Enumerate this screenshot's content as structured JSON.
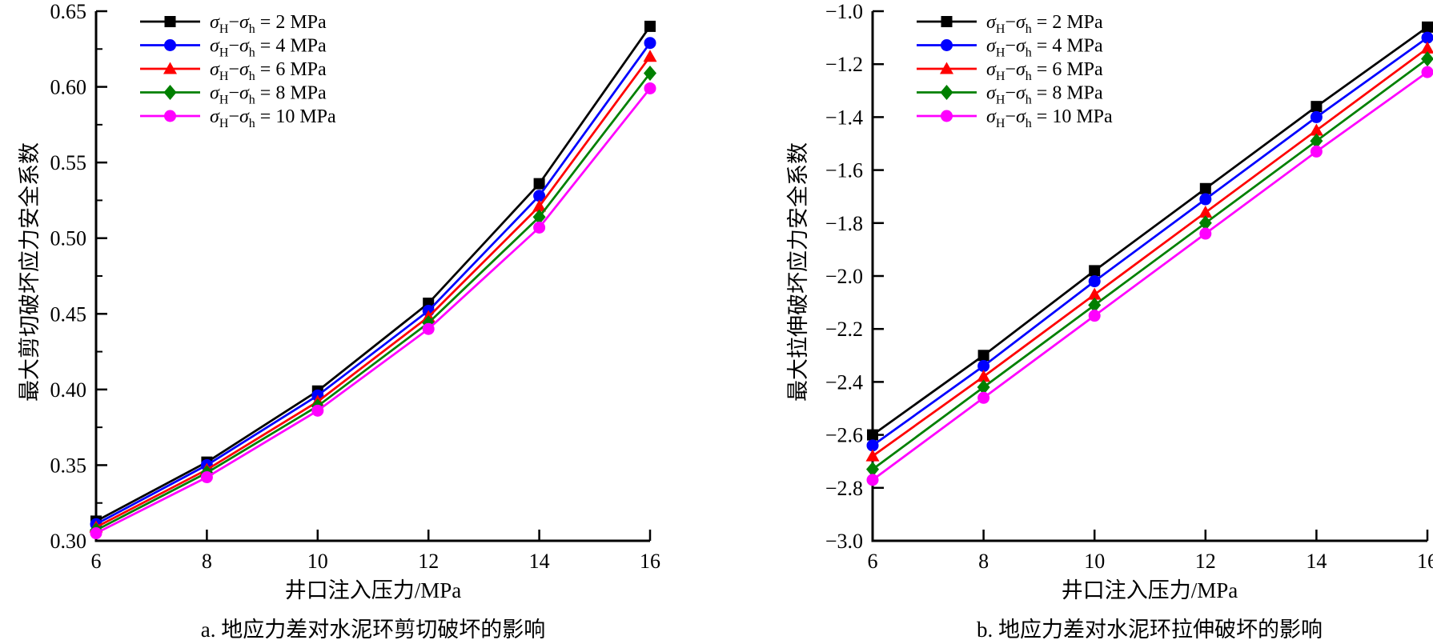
{
  "page": {
    "background": "#ffffff",
    "axis_color": "#000000"
  },
  "chart_data": [
    {
      "id": "a",
      "type": "line",
      "xlabel": "井口注入压力/MPa",
      "ylabel": "最大剪切破坏应力安全系数",
      "caption": "a. 地应力差对水泥环剪切破坏的影响",
      "x": [
        6,
        8,
        10,
        12,
        14,
        16
      ],
      "xlim": [
        6,
        16
      ],
      "xtick_step": 2,
      "ylim": [
        0.3,
        0.65
      ],
      "ytick_step": 0.05,
      "y_decimals": 2,
      "y_minor_ticks": true,
      "grid": false,
      "legend_position": "top-left-inside",
      "series": [
        {
          "name": "σ_H−σ_h = 2 MPa",
          "color": "#000000",
          "marker": "square",
          "values": [
            0.313,
            0.352,
            0.399,
            0.457,
            0.536,
            0.64
          ]
        },
        {
          "name": "σ_H−σ_h = 4 MPa",
          "color": "#0000ff",
          "marker": "circle",
          "values": [
            0.311,
            0.35,
            0.396,
            0.452,
            0.528,
            0.629
          ]
        },
        {
          "name": "σ_H−σ_h = 6 MPa",
          "color": "#ff0000",
          "marker": "triangle",
          "values": [
            0.309,
            0.347,
            0.392,
            0.448,
            0.521,
            0.62
          ]
        },
        {
          "name": "σ_H−σ_h = 8 MPa",
          "color": "#008000",
          "marker": "diamond",
          "values": [
            0.307,
            0.345,
            0.389,
            0.444,
            0.514,
            0.609
          ]
        },
        {
          "name": "σ_H−σ_h = 10 MPa",
          "color": "#ff00ff",
          "marker": "circle",
          "values": [
            0.305,
            0.342,
            0.386,
            0.44,
            0.507,
            0.599
          ]
        }
      ]
    },
    {
      "id": "b",
      "type": "line",
      "xlabel": "井口注入压力/MPa",
      "ylabel": "最大拉伸破坏应力安全系数",
      "caption": "b. 地应力差对水泥环拉伸破坏的影响",
      "x": [
        6,
        8,
        10,
        12,
        14,
        16
      ],
      "xlim": [
        6,
        16
      ],
      "xtick_step": 2,
      "ylim": [
        -3.0,
        -1.0
      ],
      "ytick_step": 0.2,
      "y_decimals": 1,
      "y_minor_ticks": false,
      "grid": false,
      "legend_position": "top-left-inside",
      "series": [
        {
          "name": "σ_H−σ_h = 2 MPa",
          "color": "#000000",
          "marker": "square",
          "values": [
            -2.6,
            -2.3,
            -1.98,
            -1.67,
            -1.36,
            -1.06
          ]
        },
        {
          "name": "σ_H−σ_h = 4 MPa",
          "color": "#0000ff",
          "marker": "circle",
          "values": [
            -2.64,
            -2.34,
            -2.02,
            -1.71,
            -1.4,
            -1.1
          ]
        },
        {
          "name": "σ_H−σ_h = 6 MPa",
          "color": "#ff0000",
          "marker": "triangle",
          "values": [
            -2.68,
            -2.38,
            -2.07,
            -1.76,
            -1.45,
            -1.14
          ]
        },
        {
          "name": "σ_H−σ_h = 8 MPa",
          "color": "#008000",
          "marker": "diamond",
          "values": [
            -2.73,
            -2.42,
            -2.11,
            -1.8,
            -1.49,
            -1.18
          ]
        },
        {
          "name": "σ_H−σ_h = 10 MPa",
          "color": "#ff00ff",
          "marker": "circle",
          "values": [
            -2.77,
            -2.46,
            -2.15,
            -1.84,
            -1.53,
            -1.23
          ]
        }
      ]
    }
  ]
}
